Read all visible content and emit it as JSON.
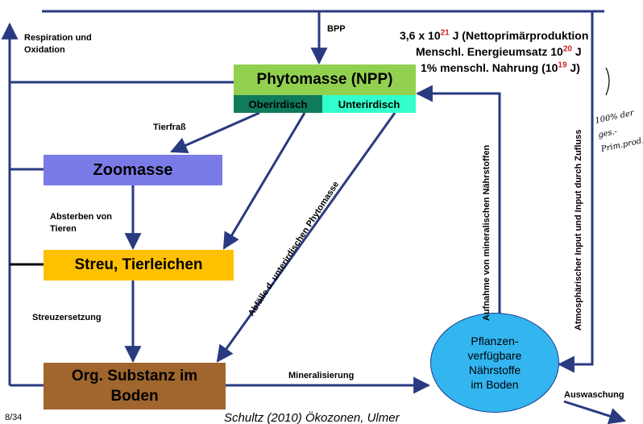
{
  "top_labels": {
    "respiration": "Respiration und Oxidation",
    "bpp": "BPP"
  },
  "energy_notes": {
    "line1_pre": "3,6 x 10",
    "line1_exp": "21",
    "line1_post": " J (Nettoprimärproduktion",
    "line2_pre": "Menschl. Energieumsatz 10",
    "line2_exp": "20",
    "line2_post": " J",
    "line3_pre": "1% menschl. Nahrung (10",
    "line3_exp": "19",
    "line3_post": " J)"
  },
  "handwritten_note": "100% der ges.-Prim.prod.",
  "boxes": {
    "phytomasse": "Phytomasse (NPP)",
    "oberirdisch": "Oberirdisch",
    "unterirdisch": "Unterirdisch",
    "zoomasse": "Zoomasse",
    "streu": "Streu, Tierleichen",
    "org_substanz": "Org. Substanz im Boden",
    "pflanzen": "Pflanzen-verfügbare Nährstoffe im Boden"
  },
  "flow_labels": {
    "tierfrass": "Tierfraß",
    "absterben": "Absterben von Tieren",
    "streuzersetzung": "Streuzersetzung",
    "mineralisierung": "Mineralisierung",
    "auswaschung": "Auswaschung",
    "abfaelle": "Abfälle d. unterirdischen Phytomasse",
    "aufnahme": "Aufnahme von mineralischen Nährstoffen",
    "atmosphaerisch": "Atmosphärischer Input und Input durch Zufluss"
  },
  "footer": {
    "page": "8/34",
    "citation": "Schultz (2010) Ökozonen, Ulmer"
  },
  "colors": {
    "arrow": "#2a3a80",
    "phytomasse": "#92d050",
    "oberirdisch": "#0f7b5a",
    "unterirdisch": "#33ffcc",
    "zoomasse": "#7b7be8",
    "streu": "#ffc000",
    "org_substanz": "#a0662e",
    "pflanzen": "#33b5f0"
  }
}
